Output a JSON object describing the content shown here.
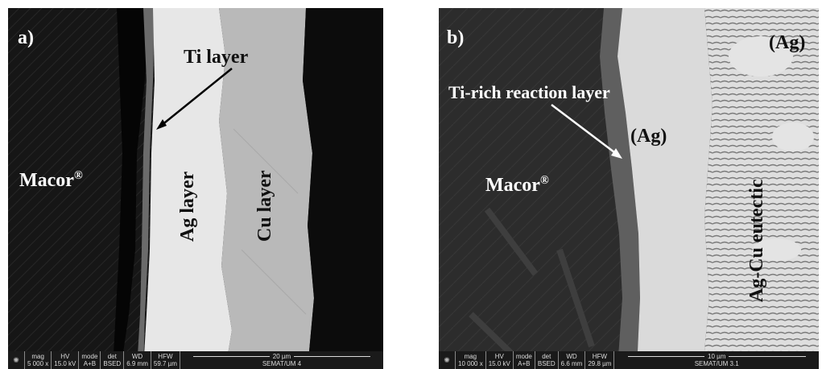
{
  "panel_a": {
    "letter": "a)",
    "labels": {
      "ti": "Ti layer",
      "macor": "Macor",
      "macor_sup": "®",
      "ag": "Ag layer",
      "cu": "Cu layer"
    },
    "infobar": {
      "headers": [
        "mag",
        "HV",
        "mode",
        "det",
        "WD",
        "HFW"
      ],
      "values": [
        "5 000 x",
        "15.0 kV",
        "A+B",
        "BSED",
        "6.9 mm",
        "59.7 µm"
      ],
      "scale": "20 µm",
      "operator": "SEMAT/UM 4"
    }
  },
  "panel_b": {
    "letter": "b)",
    "labels": {
      "ti_rich": "Ti-rich reaction layer",
      "ag_top": "(Ag)",
      "ag_mid": "(Ag)",
      "macor": "Macor",
      "macor_sup": "®",
      "eutectic": "Ag-Cu eutectic"
    },
    "infobar": {
      "headers": [
        "mag",
        "HV",
        "mode",
        "det",
        "WD",
        "HFW"
      ],
      "values": [
        "10 000 x",
        "15.0 kV",
        "A+B",
        "BSED",
        "6.6 mm",
        "29.8 µm"
      ],
      "scale": "10 µm",
      "operator": "SEMAT/UM 3.1"
    }
  }
}
